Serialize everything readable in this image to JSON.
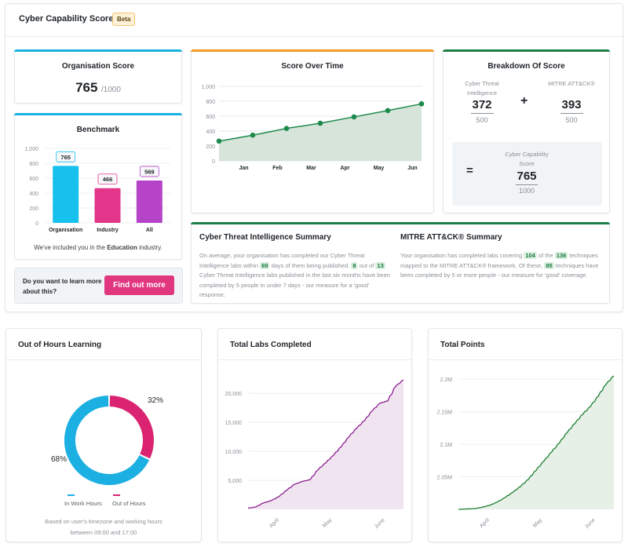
{
  "header": {
    "title": "Cyber Capability Score",
    "badge": "Beta"
  },
  "org_score": {
    "title": "Organisation Score",
    "value": "765",
    "max": "/1000",
    "accent": "#17b3e0"
  },
  "benchmark": {
    "title": "Benchmark",
    "note_prefix": "We've included you in the ",
    "note_bold": "Education",
    "note_suffix": " industry.",
    "accent": "#17b3e0"
  },
  "cta": {
    "text": "Do you want to learn more about this?",
    "button": "Find out more"
  },
  "score_over_time": {
    "title": "Score Over Time",
    "accent": "#f39c2a"
  },
  "breakdown": {
    "title": "Breakdown Of Score",
    "accent": "#1d7f45",
    "cti_label": "Cyber Threat Intelligence",
    "cti_value": "372",
    "cti_max": "500",
    "plus": "+",
    "mitre_label": "MITRE ATT&CK®",
    "mitre_value": "393",
    "mitre_max": "500",
    "equals": "=",
    "total_label": "Cyber Capability Score",
    "total_value": "765",
    "total_max": "1000"
  },
  "cti_summary": {
    "title": "Cyber Threat Intelligence Summary",
    "t1": "On average, your organisation has completed our Cyber Threat Intelligence labs within ",
    "h1": "69",
    "t2": " days of them being published. ",
    "h2": "8",
    "t3": " out of ",
    "h3": "13",
    "t4": " Cyber Threat Intelligence labs published in the last six months have been completed by 5 people in under 7 days - our measure for a 'good' response."
  },
  "mitre_summary": {
    "title": "MITRE ATT&CK® Summary",
    "t1": "Your organisation has completed labs covering ",
    "h1": "104",
    "t2": " of the ",
    "h2": "136",
    "t3": " techniques mapped to the MITRE ATT&CK® framework. Of these, ",
    "h3": "85",
    "t4": " techniques have been completed by 5 or more people - our measure for 'good' coverage."
  },
  "out_of_hours": {
    "title": "Out of Hours Learning",
    "note_line1": "Based on user's timezone and working hours",
    "note_line2": "between 09:00 and 17:00"
  },
  "total_labs": {
    "title": "Total Labs Completed"
  },
  "total_points": {
    "title": "Total Points"
  },
  "chart_data": [
    {
      "id": "benchmark",
      "type": "bar",
      "title": "Benchmark",
      "categories": [
        "Organisation",
        "Industry",
        "All"
      ],
      "values": [
        765,
        466,
        569
      ],
      "colors": [
        "#17c1ee",
        "#e3358a",
        "#b544c9"
      ],
      "ylim": [
        0,
        1000
      ],
      "yticks": [
        0,
        200,
        400,
        600,
        800,
        1000
      ],
      "ytick_labels": [
        "0",
        "200",
        "400",
        "600",
        "800",
        "1,000"
      ],
      "grid": true
    },
    {
      "id": "score_over_time",
      "type": "area",
      "title": "Score Over Time",
      "x_points": 7,
      "values": [
        265,
        345,
        435,
        505,
        590,
        675,
        765
      ],
      "xtick_labels": [
        "Jan",
        "Feb",
        "Mar",
        "Apr",
        "May",
        "Jun"
      ],
      "ylim": [
        0,
        1000
      ],
      "yticks": [
        0,
        200,
        400,
        600,
        800,
        1000
      ],
      "ytick_labels": [
        "0",
        "200",
        "400",
        "600",
        "800",
        "1,000"
      ],
      "line_color": "#1d8a4c",
      "fill_color": "#d3e1d6",
      "grid": true
    },
    {
      "id": "out_of_hours",
      "type": "pie",
      "title": "Out of Hours Learning",
      "labels": [
        "In Work Hours",
        "Out of Hours"
      ],
      "values": [
        68,
        32
      ],
      "value_labels": [
        "68%",
        "32%"
      ],
      "colors": [
        "#1cb0e2",
        "#da2471"
      ],
      "legend": "bottom"
    },
    {
      "id": "total_labs",
      "type": "area",
      "title": "Total Labs Completed",
      "x": [
        0,
        0.05,
        0.1,
        0.15,
        0.2,
        0.25,
        0.3,
        0.35,
        0.4,
        0.45,
        0.5,
        0.55,
        0.6,
        0.65,
        0.7,
        0.75,
        0.8,
        0.85,
        0.9,
        0.95,
        1.0
      ],
      "values": [
        200,
        400,
        1100,
        1500,
        2200,
        3300,
        4300,
        4800,
        5100,
        6800,
        8000,
        9300,
        10800,
        12500,
        14000,
        15300,
        17000,
        18300,
        18700,
        21200,
        22300
      ],
      "xtick_labels": [
        "April",
        "May",
        "June"
      ],
      "xtick_positions": [
        0.2,
        0.54,
        0.88
      ],
      "ylim": [
        0,
        23000
      ],
      "yticks": [
        5000,
        10000,
        15000,
        20000
      ],
      "ytick_labels": [
        "5,000",
        "10,000",
        "15,000",
        "20,000"
      ],
      "line_color": "#8a1f8f",
      "fill_color": "#f1e4f1",
      "grid": true
    },
    {
      "id": "total_points",
      "type": "area",
      "title": "Total Points",
      "x": [
        0,
        0.05,
        0.1,
        0.15,
        0.2,
        0.25,
        0.3,
        0.35,
        0.4,
        0.45,
        0.5,
        0.55,
        0.6,
        0.65,
        0.7,
        0.75,
        0.8,
        0.85,
        0.9,
        0.95,
        1.0
      ],
      "values": [
        2000000,
        2000500,
        2001000,
        2003000,
        2006000,
        2011000,
        2018000,
        2026000,
        2035000,
        2046000,
        2060000,
        2074000,
        2088000,
        2102000,
        2118000,
        2132000,
        2146000,
        2158000,
        2174000,
        2192000,
        2205000
      ],
      "xtick_labels": [
        "April",
        "May",
        "June"
      ],
      "xtick_positions": [
        0.2,
        0.54,
        0.88
      ],
      "ylim": [
        2000000,
        2205000
      ],
      "yticks": [
        2050000,
        2100000,
        2150000,
        2200000
      ],
      "ytick_labels": [
        "2.05M",
        "2.1M",
        "2.15M",
        "2.2M"
      ],
      "line_color": "#1e7f32",
      "fill_color": "#e6f0e6",
      "grid": true
    }
  ]
}
